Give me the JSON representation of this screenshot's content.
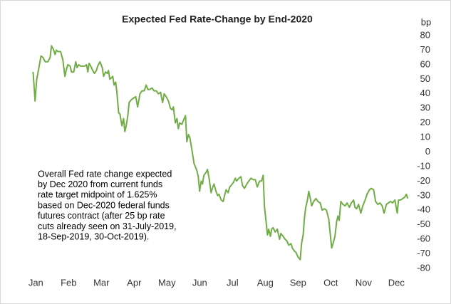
{
  "chart_data": {
    "type": "line",
    "title": "Expected Fed Rate-Change by End-2020",
    "y_axis_label": "bp",
    "annotation": [
      "Overall Fed rate change expected",
      "by Dec 2020  from current funds",
      "rate target midpoint of 1.625%",
      "based on Dec-2020 federal funds",
      "futures contract (after 25 bp rate",
      "cuts already seen on 31-July-2019,",
      "18-Sep-2019, 30-Oct-2019)."
    ],
    "x": [
      -0.04,
      0.02,
      0.07,
      0.13,
      0.2,
      0.26,
      0.33,
      0.41,
      0.48,
      0.52,
      0.59,
      0.63,
      0.67,
      0.72,
      0.8,
      0.87,
      0.93,
      0.98,
      1.02,
      1.09,
      1.13,
      1.2,
      1.26,
      1.3,
      1.35,
      1.41,
      1.48,
      1.54,
      1.59,
      1.63,
      1.67,
      1.74,
      1.78,
      1.83,
      1.89,
      1.93,
      2.0,
      2.07,
      2.11,
      2.17,
      2.22,
      2.26,
      2.3,
      2.35,
      2.39,
      2.43,
      2.48,
      2.52,
      2.57,
      2.61,
      2.67,
      2.72,
      2.76,
      2.8,
      2.85,
      2.89,
      2.96,
      3.02,
      3.09,
      3.15,
      3.22,
      3.28,
      3.35,
      3.41,
      3.46,
      3.52,
      3.59,
      3.65,
      3.72,
      3.78,
      3.85,
      3.91,
      3.96,
      4.02,
      4.09,
      4.15,
      4.2,
      4.24,
      4.3,
      4.35,
      4.39,
      4.43,
      4.5,
      4.57,
      4.61,
      4.65,
      4.7,
      4.74,
      4.78,
      4.83,
      4.87,
      4.91,
      4.96,
      5.0,
      5.04,
      5.09,
      5.13,
      5.17,
      5.24,
      5.28,
      5.33,
      5.39,
      5.43,
      5.48,
      5.54,
      5.59,
      5.63,
      5.7,
      5.76,
      5.8,
      5.85,
      5.91,
      5.96,
      6.0,
      6.07,
      6.13,
      6.17,
      6.24,
      6.3,
      6.35,
      6.41,
      6.48,
      6.54,
      6.61,
      6.67,
      6.74,
      6.8,
      6.87,
      6.93,
      6.98,
      7.02,
      7.07,
      7.11,
      7.15,
      7.2,
      7.24,
      7.28,
      7.35,
      7.41,
      7.48,
      7.52,
      7.59,
      7.65,
      7.7,
      7.76,
      7.83,
      7.87,
      7.93,
      7.98,
      8.04,
      8.11,
      8.15,
      8.2,
      8.24,
      8.28,
      8.33,
      8.37,
      8.41,
      8.46,
      8.52,
      8.59,
      8.65,
      8.72,
      8.78,
      8.85,
      8.91,
      8.98,
      9.02,
      9.07,
      9.11,
      9.17,
      9.22,
      9.26,
      9.3,
      9.35,
      9.41,
      9.48,
      9.54,
      9.61,
      9.67,
      9.74,
      9.78,
      9.83,
      9.89,
      9.96,
      10.02,
      10.09,
      10.15,
      10.22,
      10.28,
      10.35,
      10.41,
      10.48,
      10.54,
      10.61,
      10.67,
      10.74,
      10.8,
      10.87,
      10.93,
      11.0,
      11.07,
      11.11,
      11.17,
      11.24,
      11.3,
      11.35,
      11.39
    ],
    "series": [
      {
        "name": "Expected Fed Rate-Change",
        "color": "#70ad47",
        "values": [
          55,
          35,
          50,
          57,
          66,
          65,
          62,
          62,
          65,
          73,
          70,
          67,
          70,
          69,
          69,
          63,
          52,
          57,
          60,
          59,
          55,
          55,
          62,
          58,
          60,
          59,
          59,
          59,
          60,
          55,
          61,
          58,
          56,
          54,
          56,
          59,
          62,
          58,
          52,
          55,
          54,
          56,
          50,
          51,
          52,
          46,
          48,
          40,
          27,
          26,
          18,
          23,
          14,
          18,
          25,
          34,
          36,
          37,
          38,
          31,
          40,
          42,
          42,
          46,
          43,
          43,
          44,
          42,
          42,
          40,
          41,
          34,
          40,
          38,
          35,
          30,
          29,
          31,
          20,
          23,
          16,
          20,
          19,
          23,
          25,
          7,
          12,
          10,
          5,
          -2,
          -8,
          -10,
          -13,
          -17,
          -27,
          -20,
          -22,
          -16,
          -14,
          -12,
          -18,
          -28,
          -25,
          -22,
          -27,
          -30,
          -29,
          -33,
          -34,
          -30,
          -26,
          -28,
          -24,
          -23,
          -21,
          -18,
          -20,
          -18,
          -17,
          -23,
          -25,
          -22,
          -20,
          -18,
          -19,
          -19,
          -24,
          -20,
          -20,
          -16,
          -38,
          -48,
          -57,
          -53,
          -58,
          -53,
          -52,
          -55,
          -53,
          -60,
          -56,
          -58,
          -60,
          -61,
          -64,
          -63,
          -66,
          -68,
          -69,
          -72,
          -74,
          -63,
          -57,
          -45,
          -38,
          -33,
          -27,
          -31,
          -37,
          -34,
          -32,
          -34,
          -35,
          -40,
          -39,
          -40,
          -46,
          -55,
          -66,
          -63,
          -58,
          -48,
          -44,
          -47,
          -34,
          -36,
          -37,
          -35,
          -38,
          -35,
          -33,
          -38,
          -39,
          -36,
          -42,
          -37,
          -33,
          -29,
          -26,
          -25,
          -26,
          -34,
          -36,
          -35,
          -37,
          -42,
          -36,
          -35,
          -34,
          -35,
          -33,
          -42,
          -33,
          -33,
          -32,
          -31,
          -29,
          -32
        ]
      }
    ],
    "xlim": [
      -0.05,
      11.45
    ],
    "xticks": [
      {
        "value": 0,
        "label": "Jan"
      },
      {
        "value": 1,
        "label": "Feb"
      },
      {
        "value": 2,
        "label": "Mar"
      },
      {
        "value": 3,
        "label": "Apr"
      },
      {
        "value": 4,
        "label": "May"
      },
      {
        "value": 5,
        "label": "Jun"
      },
      {
        "value": 6,
        "label": "Jul"
      },
      {
        "value": 7,
        "label": "Aug"
      },
      {
        "value": 8,
        "label": "Sep"
      },
      {
        "value": 9,
        "label": "Oct"
      },
      {
        "value": 10,
        "label": "Nov"
      },
      {
        "value": 11,
        "label": "Dec"
      }
    ],
    "ylim": [
      -80,
      80
    ],
    "yticks": [
      -80,
      -70,
      -60,
      -50,
      -40,
      -30,
      -20,
      -10,
      0,
      10,
      20,
      30,
      40,
      50,
      60,
      70,
      80
    ],
    "y_axis_side": "right",
    "grid": false
  }
}
